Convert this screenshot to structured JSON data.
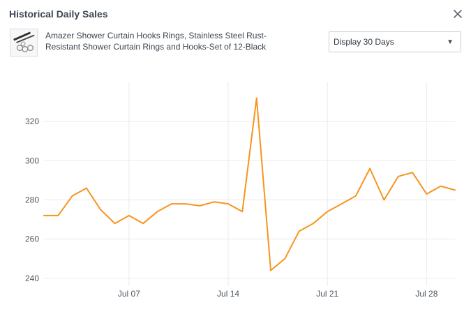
{
  "header": {
    "title": "Historical Daily Sales",
    "close_icon": "close-icon"
  },
  "product": {
    "name": "Amazer Shower Curtain Hooks Rings, Stainless Steel Rust-Resistant Shower Curtain Rings and Hooks-Set of 12-Black",
    "thumbnail_icon": "product-thumbnail"
  },
  "range_select": {
    "selected": "Display 30 Days",
    "arrow_icon": "triangle-down-icon"
  },
  "colors": {
    "line": "#f7941d",
    "grid": "#ebebeb",
    "text": "#3d4754"
  },
  "chart_data": {
    "type": "line",
    "title": "",
    "xlabel": "",
    "ylabel": "",
    "x": [
      "2019-07-01",
      "2019-07-02",
      "2019-07-03",
      "2019-07-04",
      "2019-07-05",
      "2019-07-06",
      "2019-07-07",
      "2019-07-08",
      "2019-07-09",
      "2019-07-10",
      "2019-07-11",
      "2019-07-12",
      "2019-07-13",
      "2019-07-14",
      "2019-07-15",
      "2019-07-16",
      "2019-07-17",
      "2019-07-18",
      "2019-07-19",
      "2019-07-20",
      "2019-07-21",
      "2019-07-22",
      "2019-07-23",
      "2019-07-24",
      "2019-07-25",
      "2019-07-26",
      "2019-07-27",
      "2019-07-28",
      "2019-07-29",
      "2019-07-30"
    ],
    "values": [
      272,
      272,
      282,
      286,
      275,
      268,
      272,
      268,
      274,
      278,
      278,
      277,
      279,
      278,
      274,
      332,
      244,
      250,
      264,
      268,
      274,
      278,
      282,
      296,
      280,
      292,
      294,
      283,
      287,
      285
    ],
    "xlim": [
      "2019-07-01",
      "2019-07-30"
    ],
    "ylim": [
      236,
      340
    ],
    "x_ticks": [
      {
        "date": "2019-07-07",
        "label": "Jul 07"
      },
      {
        "date": "2019-07-14",
        "label": "Jul 14"
      },
      {
        "date": "2019-07-21",
        "label": "Jul 21"
      },
      {
        "date": "2019-07-28",
        "label": "Jul 28"
      }
    ],
    "y_ticks": [
      240,
      260,
      280,
      300,
      320
    ],
    "grid": true,
    "legend": "none"
  }
}
